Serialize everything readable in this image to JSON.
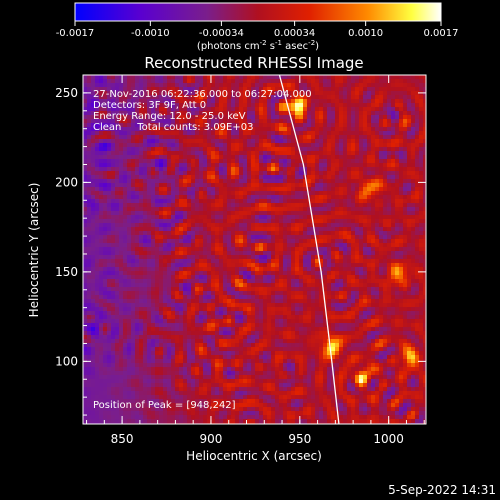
{
  "chart_data": {
    "type": "heatmap",
    "title": "Reconstructed RHESSI Image",
    "xlabel": "Heliocentric X (arcsec)",
    "ylabel": "Heliocentric Y (arcsec)",
    "xlim": [
      828,
      1021
    ],
    "ylim": [
      65,
      260
    ],
    "x_ticks": [
      850,
      900,
      950,
      1000
    ],
    "y_ticks": [
      100,
      150,
      200,
      250
    ],
    "colorbar": {
      "range": [
        -0.0017,
        0.0017
      ],
      "tick_values": [
        -0.0017,
        -0.001,
        -0.00034,
        0.00034,
        0.001,
        0.0017
      ],
      "tick_labels": [
        "-0.0017",
        "-0.0010",
        "-0.00034",
        "0.00034",
        "0.0010",
        "0.0017"
      ],
      "unit_prefix": "(photons cm",
      "unit_exp1": "-2",
      "unit_mid": " s",
      "unit_exp2": "-1",
      "unit_mid2": " asec",
      "unit_exp3": "-2",
      "unit_suffix": ")",
      "colors": [
        "#0000ff",
        "#6a00c8",
        "#7a1e8c",
        "#c81414",
        "#ff7800",
        "#ffff00",
        "#ffffff"
      ]
    },
    "info_lines": [
      "27-Nov-2016 06:22:36.000 to 06:27:04.000",
      "Detectors: 3F 9F, Att 0",
      "Energy Range: 12.0 - 25.0 keV",
      "Clean     Total counts: 3.09E+03"
    ],
    "peak_text": "Position of Peak = [948,242]",
    "peak": [
      948,
      242
    ],
    "bright_sources": [
      {
        "x": 948,
        "y": 242,
        "value": 0.0017
      },
      {
        "x": 968,
        "y": 108,
        "value": 0.0015
      },
      {
        "x": 1012,
        "y": 102,
        "value": 0.0012
      },
      {
        "x": 1006,
        "y": 148,
        "value": 0.0011
      },
      {
        "x": 990,
        "y": 196,
        "value": 0.001
      },
      {
        "x": 985,
        "y": 92,
        "value": 0.0011
      }
    ],
    "limb_curve": [
      [
        938,
        262
      ],
      [
        952,
        210
      ],
      [
        962,
        150
      ],
      [
        968,
        100
      ],
      [
        972,
        65
      ]
    ]
  },
  "footer": {
    "timestamp": "5-Sep-2022 14:31"
  }
}
